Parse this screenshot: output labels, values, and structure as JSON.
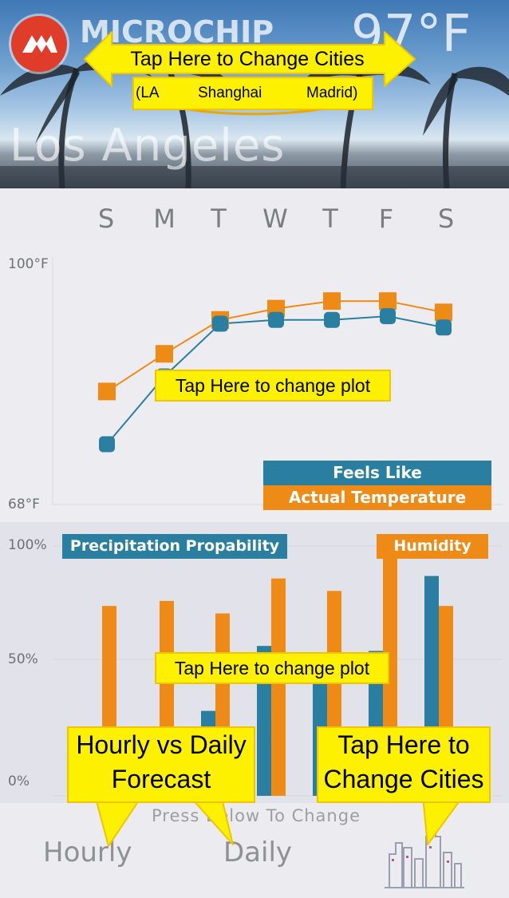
{
  "header": {
    "brand": "MICROCHIP",
    "temperature": "97°F",
    "city": "Los Angeles"
  },
  "days": [
    "S",
    "M",
    "T",
    "W",
    "T",
    "F",
    "S"
  ],
  "temp_plot": {
    "ymax_label": "100°F",
    "ymin_label": "68°F",
    "legend_feels": "Feels Like",
    "legend_actual": "Actual Temperature"
  },
  "precip_plot": {
    "y100_label": "100%",
    "y50_label": "50%",
    "y0_label": "0%",
    "legend_precip": "Precipitation Propability",
    "legend_humidity": "Humidity"
  },
  "footer": {
    "hint": "Press Below To Change",
    "hourly": "Hourly",
    "daily": "Daily"
  },
  "annotations": {
    "change_cities_top": "Tap Here to Change Cities",
    "city_la": "(LA",
    "city_shanghai": "Shanghai",
    "city_madrid": "Madrid)",
    "change_plot_1": "Tap Here to change plot",
    "change_plot_2": "Tap Here to change plot",
    "hourly_daily_line1": "Hourly vs Daily",
    "hourly_daily_line2": "Forecast",
    "change_cities_bottom_line1": "Tap Here to",
    "change_cities_bottom_line2": "Change Cities"
  },
  "colors": {
    "feels_like": "#2a7fa0",
    "actual": "#ee8a16",
    "callout": "#fdf100"
  },
  "chart_data": [
    {
      "type": "line",
      "categories": [
        "S",
        "M",
        "T",
        "W",
        "T",
        "F",
        "S"
      ],
      "ylim": [
        68,
        100
      ],
      "series": [
        {
          "name": "Feels Like",
          "values": [
            76,
            85,
            92,
            92.5,
            92.5,
            93,
            91.5
          ]
        },
        {
          "name": "Actual Temperature",
          "values": [
            83,
            88,
            92.5,
            94,
            95,
            95,
            93.5
          ]
        }
      ],
      "legend": "bottom-right"
    },
    {
      "type": "bar",
      "categories": [
        "S",
        "M",
        "T",
        "W",
        "T",
        "F",
        "S"
      ],
      "ylim": [
        0,
        100
      ],
      "series": [
        {
          "name": "Precipitation Propability",
          "values": [
            0,
            0,
            34,
            60,
            54,
            58,
            88
          ]
        },
        {
          "name": "Humidity",
          "values": [
            76,
            78,
            73,
            87,
            82,
            97,
            76
          ]
        }
      ],
      "legend": "top"
    }
  ]
}
